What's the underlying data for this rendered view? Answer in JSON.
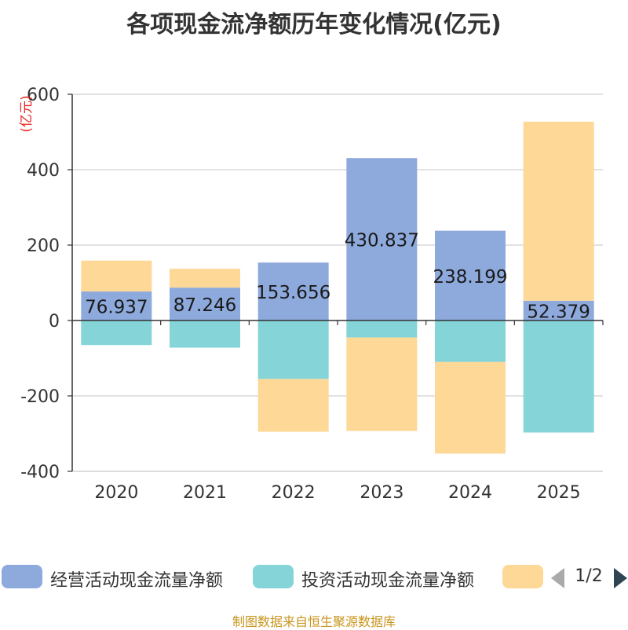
{
  "chart_data": {
    "type": "bar",
    "stacked": true,
    "title": "各项现金流净额历年变化情况(亿元)",
    "ylabel": "(亿元)",
    "categories": [
      "2020",
      "2021",
      "2022",
      "2023",
      "2024",
      "2025"
    ],
    "ylim": [
      -400,
      600
    ],
    "yticks": [
      600,
      400,
      200,
      0,
      -200,
      -400
    ],
    "series": [
      {
        "name": "经营活动现金流量净额",
        "color": "#8eaadc",
        "values": [
          76.937,
          87.246,
          153.656,
          430.837,
          238.199,
          52.379
        ],
        "show_labels": true
      },
      {
        "name": "投资活动现金流量净额",
        "color": "#84d4d8",
        "values": [
          -65,
          -72,
          -155,
          -45,
          -110,
          -297
        ],
        "show_labels": false
      },
      {
        "name": "",
        "color": "#fed897",
        "values": [
          82,
          50,
          -140,
          -248,
          -243,
          475
        ],
        "show_labels": false
      }
    ]
  },
  "legend": {
    "page": "1/2"
  },
  "source": "制图数据来自恒生聚源数据库"
}
